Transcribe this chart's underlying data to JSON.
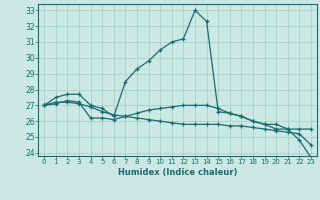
{
  "xlabel": "Humidex (Indice chaleur)",
  "bg_color": "#cce8e5",
  "line_color": "#1a6b6b",
  "grid_color": "#aad0cd",
  "xlim": [
    -0.5,
    23.5
  ],
  "ylim": [
    23.8,
    33.4
  ],
  "xticks": [
    0,
    1,
    2,
    3,
    4,
    5,
    6,
    7,
    8,
    9,
    10,
    11,
    12,
    13,
    14,
    15,
    16,
    17,
    18,
    19,
    20,
    21,
    22,
    23
  ],
  "yticks": [
    24,
    25,
    26,
    27,
    28,
    29,
    30,
    31,
    32,
    33
  ],
  "curves": [
    {
      "x": [
        0,
        1,
        2,
        3,
        4,
        5,
        6,
        7,
        8,
        9,
        10,
        11,
        12,
        13,
        14,
        15,
        16,
        17,
        18,
        19,
        20,
        21,
        22,
        23
      ],
      "y": [
        27.0,
        27.5,
        27.7,
        27.7,
        27.0,
        26.8,
        26.3,
        28.5,
        29.3,
        29.8,
        30.5,
        31.0,
        31.2,
        33.0,
        32.3,
        26.6,
        26.5,
        26.3,
        26.0,
        25.8,
        25.5,
        25.5,
        24.8,
        23.7
      ]
    },
    {
      "x": [
        0,
        1,
        2,
        3,
        4,
        5,
        6,
        7,
        8,
        9,
        10,
        11,
        12,
        13,
        14,
        15,
        16,
        17,
        18,
        19,
        20,
        21,
        22,
        23
      ],
      "y": [
        27.0,
        27.2,
        27.2,
        27.1,
        26.9,
        26.6,
        26.4,
        26.3,
        26.2,
        26.1,
        26.0,
        25.9,
        25.8,
        25.8,
        25.8,
        25.8,
        25.7,
        25.7,
        25.6,
        25.5,
        25.4,
        25.3,
        25.2,
        24.5
      ]
    },
    {
      "x": [
        0,
        1,
        2,
        3,
        4,
        5,
        6,
        7,
        8,
        9,
        10,
        11,
        12,
        13,
        14,
        15,
        16,
        17,
        18,
        19,
        20,
        21,
        22,
        23
      ],
      "y": [
        27.0,
        27.1,
        27.3,
        27.2,
        26.2,
        26.2,
        26.1,
        26.3,
        26.5,
        26.7,
        26.8,
        26.9,
        27.0,
        27.0,
        27.0,
        26.8,
        26.5,
        26.3,
        26.0,
        25.8,
        25.8,
        25.5,
        25.5,
        25.5
      ]
    }
  ]
}
